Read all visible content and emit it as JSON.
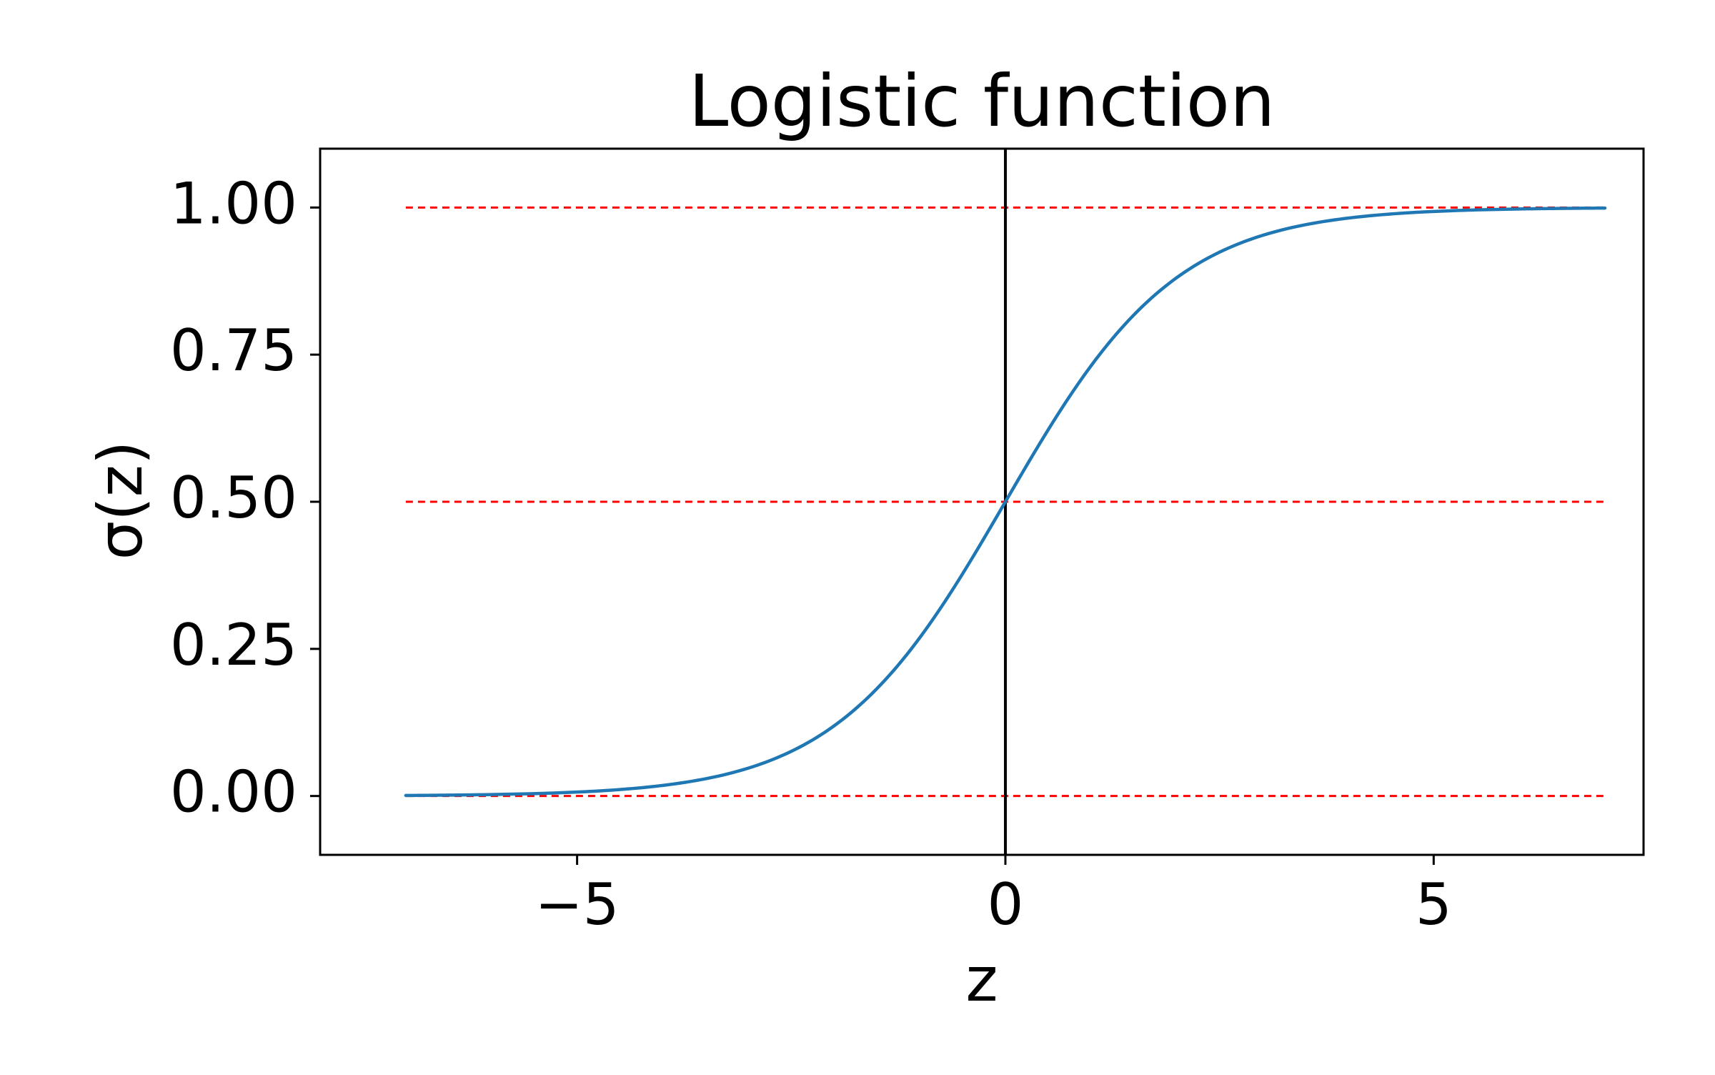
{
  "chart_data": {
    "type": "line",
    "title": "Logistic function",
    "xlabel": "z",
    "ylabel": "σ(z)",
    "xlim": [
      -8,
      7.45
    ],
    "ylim": [
      -0.1,
      1.1
    ],
    "xticks": [
      -5,
      0,
      5
    ],
    "xtick_labels": [
      "−5",
      "0",
      "5"
    ],
    "yticks": [
      0.0,
      0.25,
      0.5,
      0.75,
      1.0
    ],
    "ytick_labels": [
      "0.00",
      "0.25",
      "0.50",
      "0.75",
      "1.00"
    ],
    "grid": false,
    "series": [
      {
        "function": "sigmoid",
        "x_range": [
          -7,
          7
        ],
        "samples": 281,
        "color": "#1f77b4"
      }
    ],
    "reference_lines": {
      "horizontal": {
        "values": [
          0.0,
          0.5,
          1.0
        ],
        "x_range": [
          -7,
          7
        ],
        "color": "#ff0000",
        "style": "dashed"
      },
      "vertical": {
        "value": 0,
        "color": "#000000",
        "style": "solid"
      }
    }
  }
}
